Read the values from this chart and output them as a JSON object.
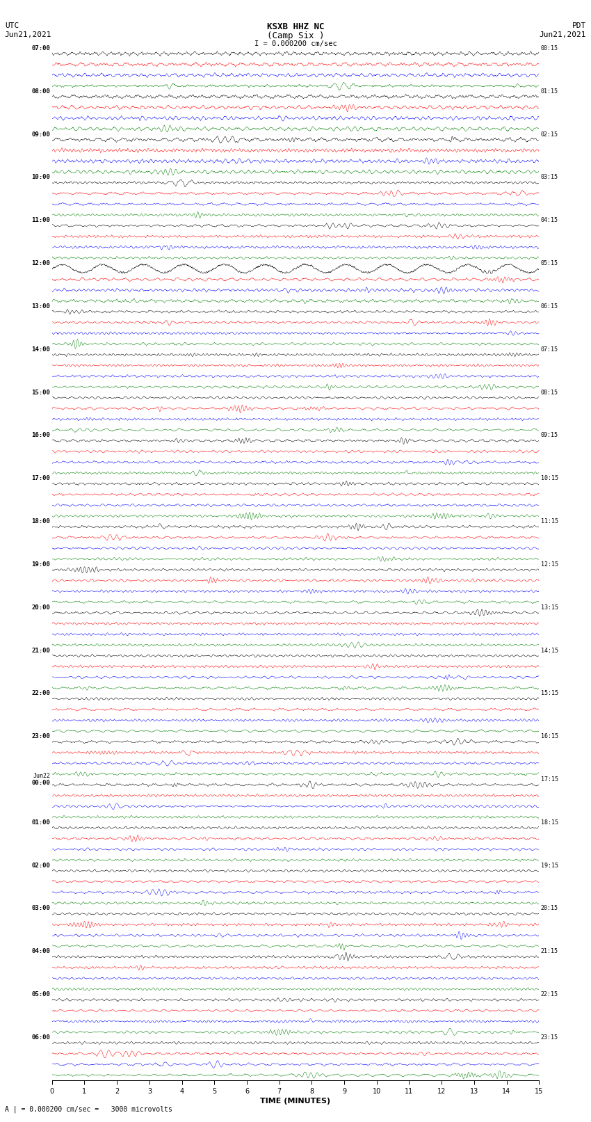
{
  "title_line1": "KSXB HHZ NC",
  "title_line2": "(Camp Six )",
  "left_top_label1": "UTC",
  "left_top_label2": "Jun21,2021",
  "right_top_label1": "PDT",
  "right_top_label2": "Jun21,2021",
  "scale_label": "I = 0.000200 cm/sec",
  "bottom_label": "A | = 0.000200 cm/sec =   3000 microvolts",
  "xlabel": "TIME (MINUTES)",
  "xlim": [
    0,
    15
  ],
  "xticks": [
    0,
    1,
    2,
    3,
    4,
    5,
    6,
    7,
    8,
    9,
    10,
    11,
    12,
    13,
    14,
    15
  ],
  "background_color": "#ffffff",
  "trace_colors_cycle": [
    "black",
    "red",
    "blue",
    "green"
  ],
  "num_groups": 24,
  "traces_per_group": 4,
  "fig_width": 8.5,
  "fig_height": 16.13,
  "left_times": [
    "07:00",
    "08:00",
    "09:00",
    "10:00",
    "11:00",
    "12:00",
    "13:00",
    "14:00",
    "15:00",
    "16:00",
    "17:00",
    "18:00",
    "19:00",
    "20:00",
    "21:00",
    "22:00",
    "23:00",
    "Jun22\n00:00",
    "01:00",
    "02:00",
    "03:00",
    "04:00",
    "05:00",
    "06:00"
  ],
  "right_times": [
    "00:15",
    "01:15",
    "02:15",
    "03:15",
    "04:15",
    "05:15",
    "06:15",
    "07:15",
    "08:15",
    "09:15",
    "10:15",
    "11:15",
    "12:15",
    "13:15",
    "14:15",
    "15:15",
    "16:15",
    "17:15",
    "18:15",
    "19:15",
    "20:15",
    "21:15",
    "22:15",
    "23:15"
  ]
}
